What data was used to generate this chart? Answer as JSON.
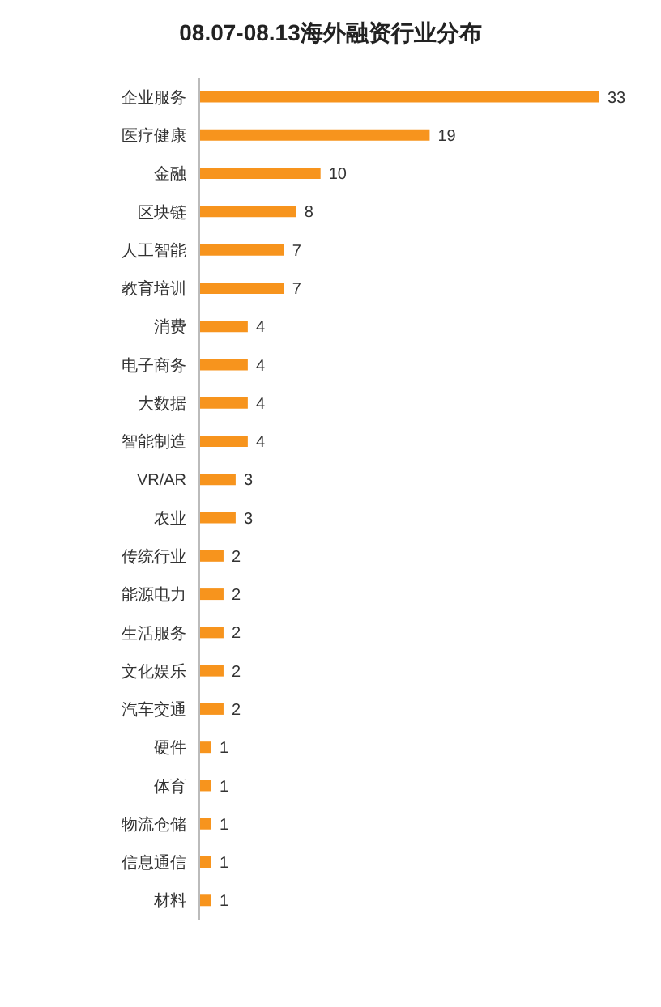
{
  "chart_data": {
    "type": "bar",
    "orientation": "horizontal",
    "title": "08.07-08.13海外融资行业分布",
    "categories": [
      "企业服务",
      "医疗健康",
      "金融",
      "区块链",
      "人工智能",
      "教育培训",
      "消费",
      "电子商务",
      "大数据",
      "智能制造",
      "VR/AR",
      "农业",
      "传统行业",
      "能源电力",
      "生活服务",
      "文化娱乐",
      "汽车交通",
      "硬件",
      "体育",
      "物流仓储",
      "信息通信",
      "材料"
    ],
    "values": [
      33,
      19,
      10,
      8,
      7,
      7,
      4,
      4,
      4,
      4,
      3,
      3,
      2,
      2,
      2,
      2,
      2,
      1,
      1,
      1,
      1,
      1
    ],
    "color": "#f7941d",
    "data_labels": true,
    "grid": false,
    "legend": false
  }
}
